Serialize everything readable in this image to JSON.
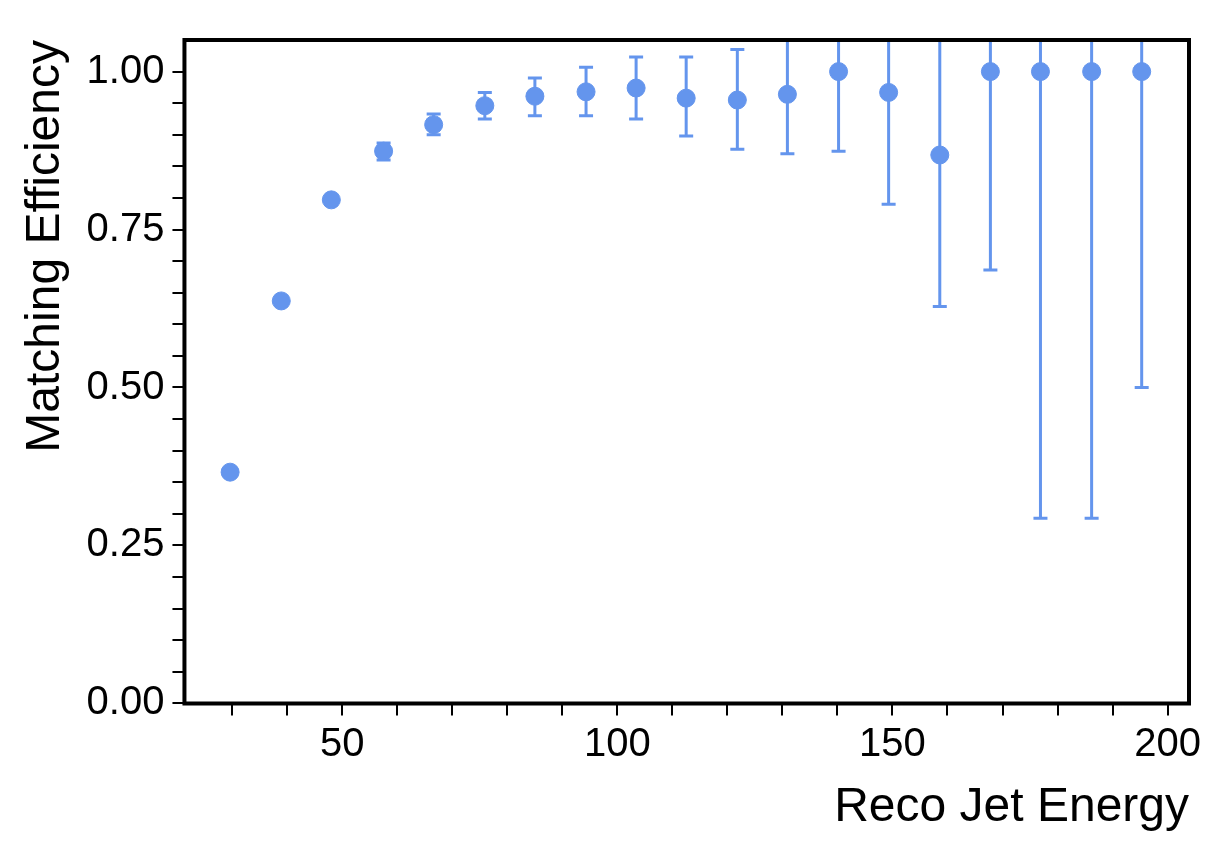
{
  "chart_data": {
    "type": "scatter",
    "xlabel": "Reco Jet Energy",
    "ylabel": "Matching Efficiency",
    "x": [
      29.6,
      38.9,
      48.0,
      57.5,
      66.6,
      75.9,
      85.0,
      94.3,
      103.4,
      112.5,
      121.8,
      130.9,
      140.2,
      149.3,
      158.6,
      167.8,
      176.9,
      186.2,
      195.3
    ],
    "series": [
      {
        "color": "#6495ed",
        "values": [
          0.366,
          0.637,
          0.797,
          0.874,
          0.916,
          0.946,
          0.961,
          0.968,
          0.974,
          0.958,
          0.955,
          0.964,
          1.0,
          0.967,
          0.868,
          1.0,
          1.0,
          1.0,
          1.0
        ],
        "errors": [
          null,
          null,
          null,
          [
            0.86,
            0.887
          ],
          [
            0.9,
            0.933
          ],
          [
            0.925,
            0.967
          ],
          [
            0.93,
            0.99
          ],
          [
            0.93,
            1.007
          ],
          [
            0.925,
            1.023
          ],
          [
            0.898,
            1.023
          ],
          [
            0.877,
            1.035
          ],
          [
            0.87,
            1.05
          ],
          [
            0.874,
            1.05
          ],
          [
            0.79,
            1.05
          ],
          [
            0.628,
            1.05
          ],
          [
            0.686,
            1.05
          ],
          [
            0.293,
            1.05
          ],
          [
            0.293,
            1.05
          ],
          [
            0.5,
            1.05
          ]
        ]
      }
    ],
    "xlim": [
      21.3,
      203.9
    ],
    "xticks": [
      {
        "value": 30,
        "label": null
      },
      {
        "value": 40,
        "label": null
      },
      50,
      {
        "value": 60,
        "label": null
      },
      {
        "value": 70,
        "label": null
      },
      {
        "value": 80,
        "label": null
      },
      {
        "value": 90,
        "label": null
      },
      100,
      {
        "value": 110,
        "label": null
      },
      {
        "value": 120,
        "label": null
      },
      {
        "value": 130,
        "label": null
      },
      {
        "value": 140,
        "label": null
      },
      150,
      {
        "value": 160,
        "label": null
      },
      {
        "value": 170,
        "label": null
      },
      {
        "value": 180,
        "label": null
      },
      {
        "value": 190,
        "label": null
      },
      200
    ],
    "ylim": [
      0,
      1.05
    ],
    "yticks": [
      {
        "value": 0,
        "label": "0.00"
      },
      {
        "value": 0.05,
        "label": null
      },
      {
        "value": 0.1,
        "label": null
      },
      {
        "value": 0.15,
        "label": null
      },
      {
        "value": 0.2,
        "label": null
      },
      {
        "value": 0.25,
        "label": "0.25"
      },
      {
        "value": 0.3,
        "label": null
      },
      {
        "value": 0.35,
        "label": null
      },
      {
        "value": 0.4,
        "label": null
      },
      {
        "value": 0.45,
        "label": null
      },
      {
        "value": 0.5,
        "label": "0.50"
      },
      {
        "value": 0.55,
        "label": null
      },
      {
        "value": 0.6,
        "label": null
      },
      {
        "value": 0.65,
        "label": null
      },
      {
        "value": 0.7,
        "label": null
      },
      {
        "value": 0.75,
        "label": "0.75"
      },
      {
        "value": 0.8,
        "label": null
      },
      {
        "value": 0.85,
        "label": null
      },
      {
        "value": 0.9,
        "label": null
      },
      {
        "value": 0.95,
        "label": null
      },
      {
        "value": 1.0,
        "label": "1.00"
      }
    ],
    "marker": "circle",
    "grid": false,
    "legend": false
  }
}
